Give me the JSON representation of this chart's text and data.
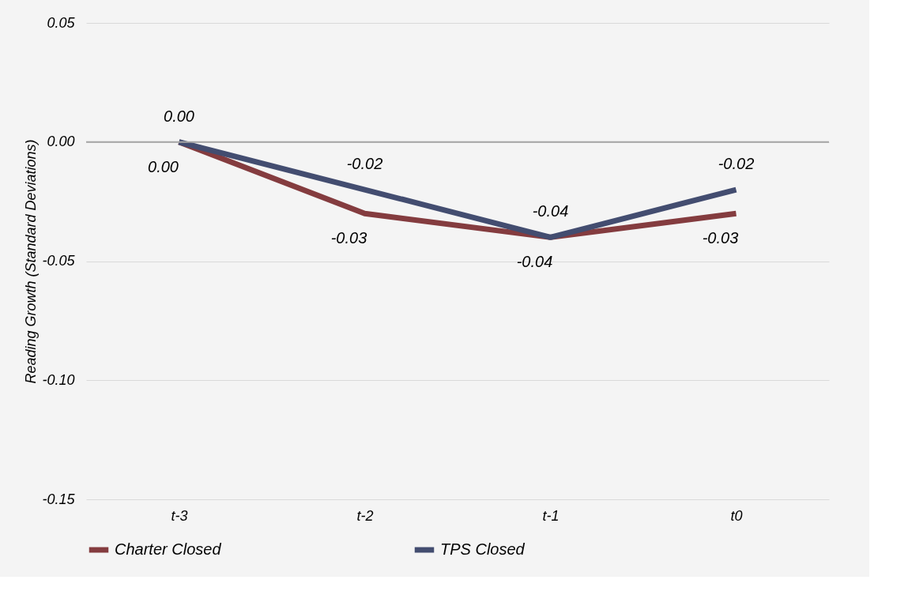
{
  "chart_data": {
    "type": "line",
    "ylabel": "Reading Growth (Standard Deviations)",
    "categories": [
      "t-3",
      "t-2",
      "t-1",
      "t0"
    ],
    "series": [
      {
        "name": "Charter Closed",
        "color": "#843c3f",
        "values": [
          0.0,
          -0.03,
          -0.04,
          -0.03
        ],
        "value_labels": [
          "0.00",
          "-0.03",
          "-0.04",
          "-0.03"
        ]
      },
      {
        "name": "TPS Closed",
        "color": "#434d70",
        "values": [
          0.0,
          -0.02,
          -0.04,
          -0.02
        ],
        "value_labels": [
          "0.00",
          "-0.02",
          "-0.04",
          "-0.02"
        ]
      }
    ],
    "ylim": [
      -0.15,
      0.05
    ],
    "yticks": [
      {
        "value": -0.15,
        "label": "-0.15"
      },
      {
        "value": -0.1,
        "label": "-0.10"
      },
      {
        "value": -0.05,
        "label": "-0.05"
      },
      {
        "value": 0,
        "label": "0.00"
      },
      {
        "value": 0.05,
        "label": "0.05"
      }
    ],
    "ref_lines": [
      {
        "axis": "y",
        "value": 0,
        "color": "#a6a6a6"
      }
    ],
    "grid": "y",
    "legend": "bottom",
    "marker": "none",
    "line_style": "solid"
  }
}
